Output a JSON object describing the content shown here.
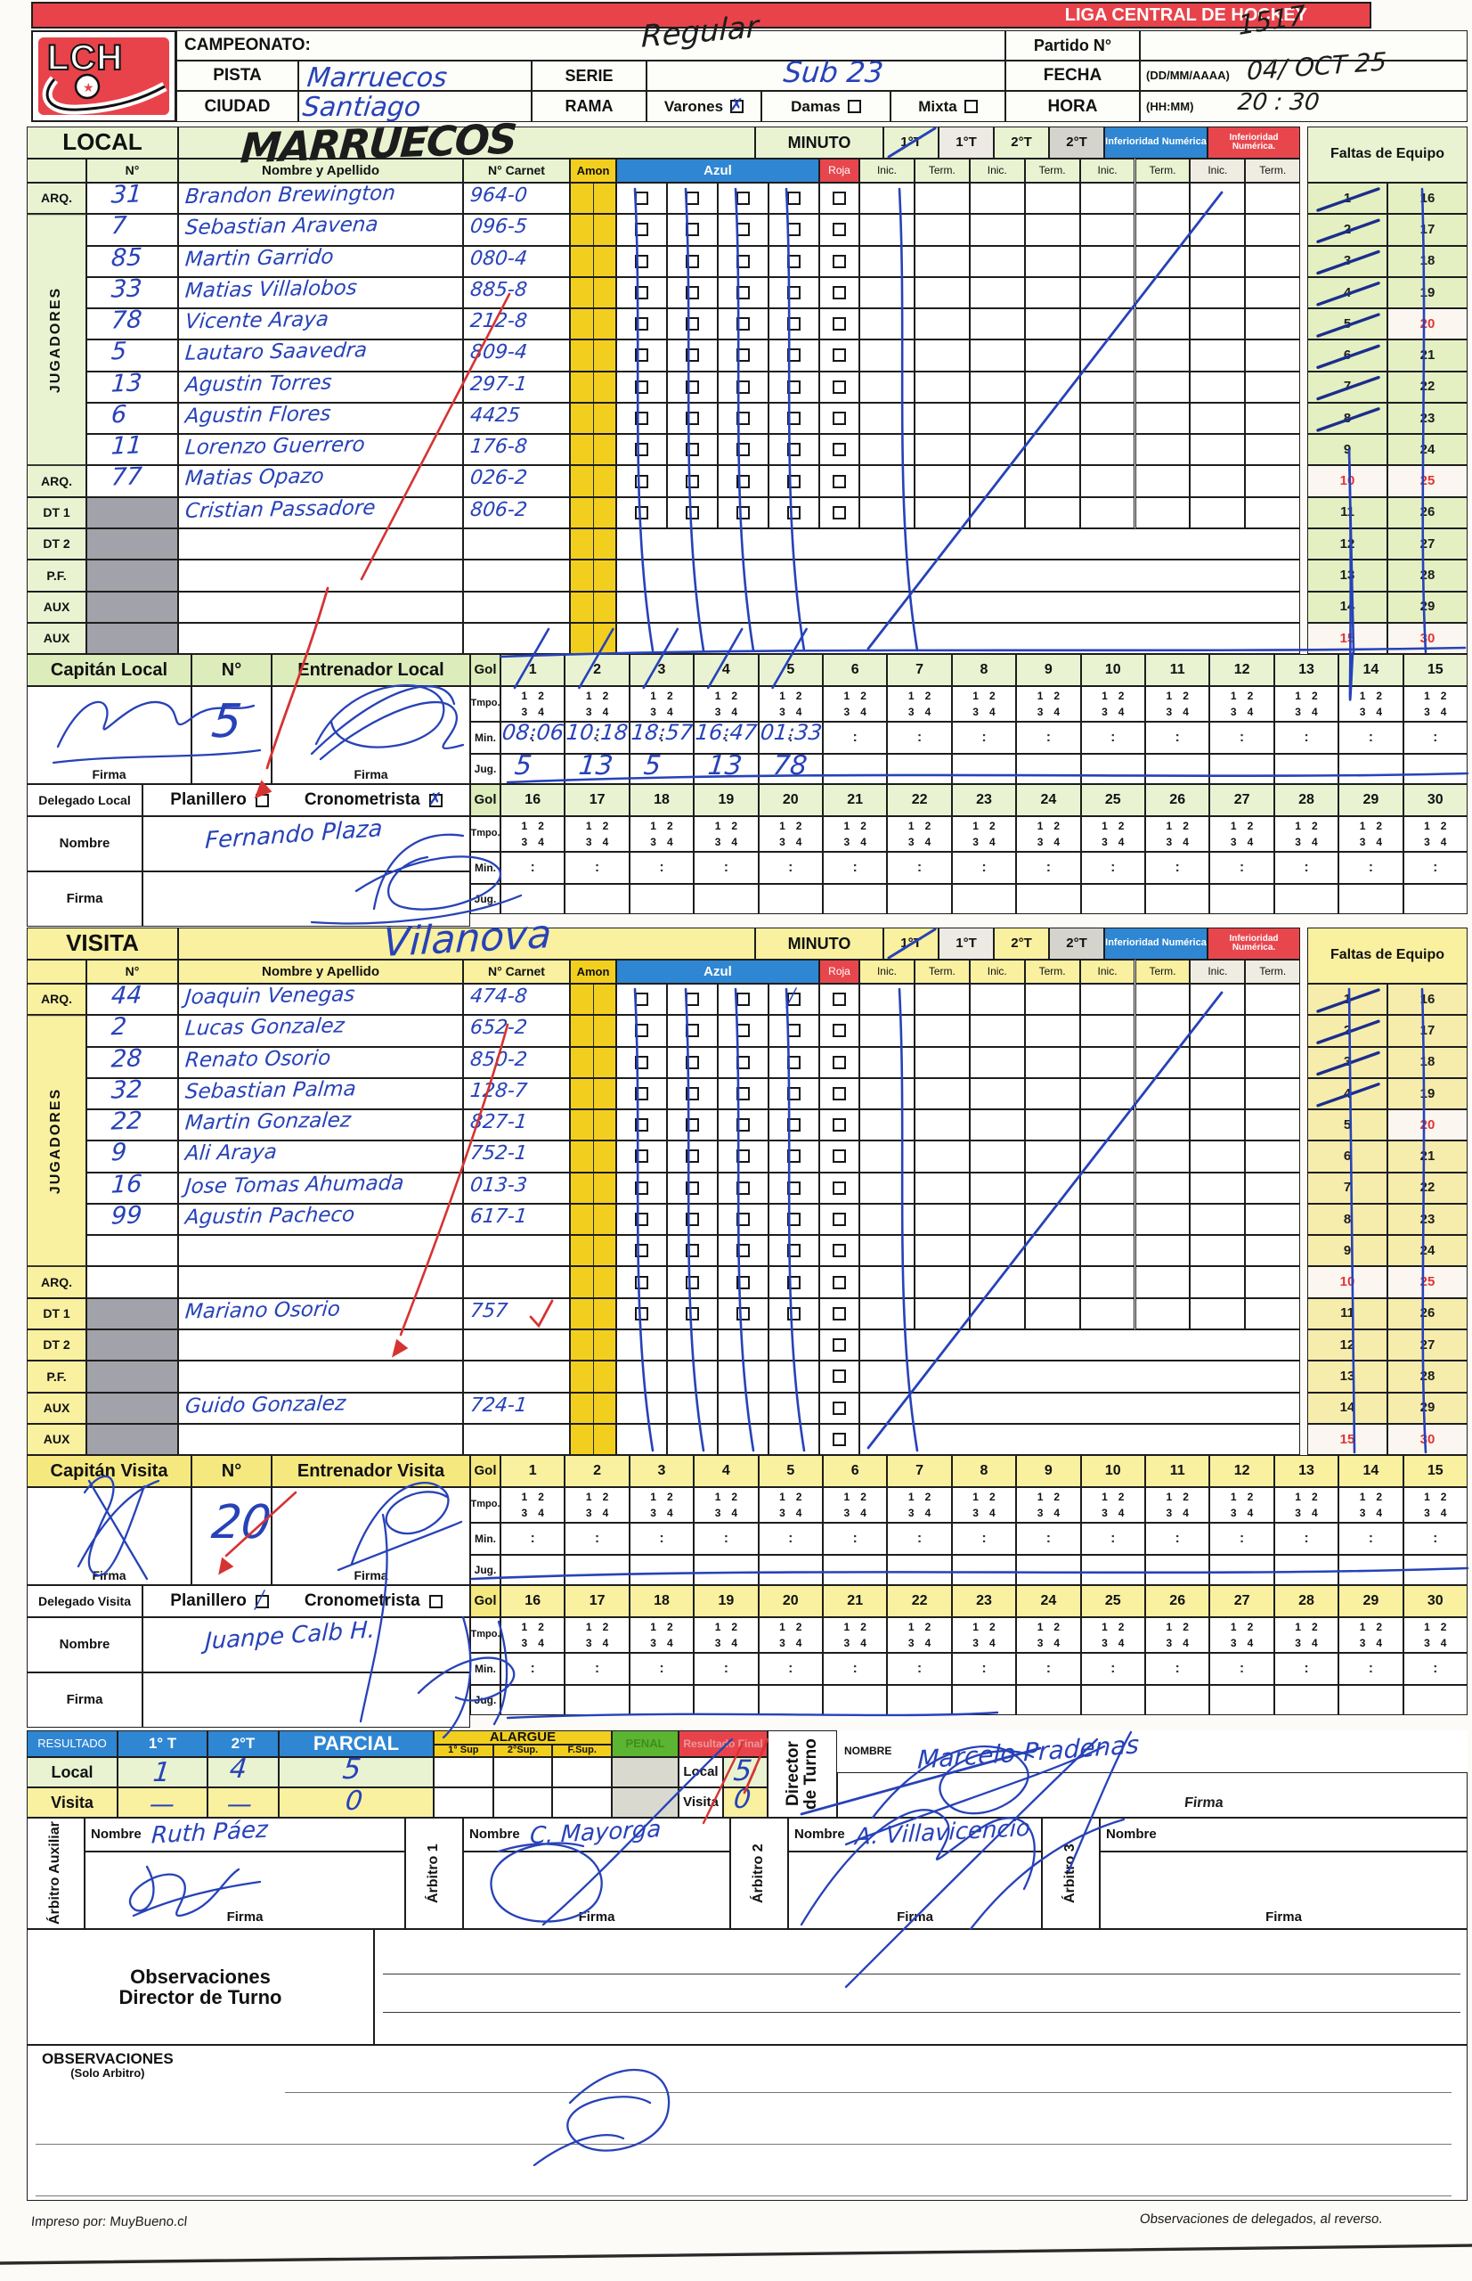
{
  "colors": {
    "header_red": "#e8434b",
    "blue": "#2f86d2",
    "amon_yellow": "#f2cf1f",
    "roja_red": "#e8464d",
    "penal_green": "#5cb531",
    "local_green": "#e9f3d2",
    "local_green_dark": "#dcecba",
    "visita_yellow": "#f9f0a0",
    "visita_yellow_dark": "#f5e87e",
    "gray_cell": "#a2a2aa",
    "period_gray": "#d4d4cc",
    "ink_blue": "#2742b8",
    "ink_red": "#d63333",
    "ink_black": "#1c1c1c"
  },
  "title_bar": {
    "title": "LIGA CENTRAL DE HOCKEY"
  },
  "logo": {
    "text": "LCH"
  },
  "header": {
    "campeonato_label": "CAMPEONATO:",
    "campeonato_value": "Regular",
    "pista_label": "PISTA",
    "pista_value": "Marruecos",
    "ciudad_label": "CIUDAD",
    "ciudad_value": "Santiago",
    "serie_label": "SERIE",
    "serie_value": "Sub 23",
    "rama_label": "RAMA",
    "rama_options": [
      {
        "label": "Varones",
        "checked": true
      },
      {
        "label": "Damas",
        "checked": false
      },
      {
        "label": "Mixta",
        "checked": false
      }
    ],
    "partido_label": "Partido N°",
    "partido_value": "1517",
    "fecha_label": "FECHA",
    "fecha_format": "(DD/MM/AAAA)",
    "fecha_value": "04/ OCT 25",
    "hora_label": "HORA",
    "hora_format": "(HH:MM)",
    "hora_value": "20 : 30"
  },
  "shared": {
    "minuto_label": "MINUTO",
    "periods": [
      "1°T",
      "1°T",
      "2°T",
      "2°T"
    ],
    "inferioridad_label": "Inferioridad Numérica",
    "inferioridad_label2": "Inferioridad Numérica.",
    "faltas_label": "Faltas de Equipo",
    "col_headers": {
      "num": "N°",
      "nombre": "Nombre y Apellido",
      "carnet": "N° Carnet",
      "amon": "Amon",
      "azul": "Azul",
      "roja": "Roja",
      "inic": "Inic.",
      "term": "Term."
    },
    "jugadores_label": "JUGADORES",
    "firma_label": "Firma",
    "nombre_label": "Nombre",
    "planillero_label": "Planillero",
    "cronometrista_label": "Cronometrista",
    "gol_label": "Gol",
    "tmpo_label": "Tmpo.",
    "min_label": "Min.",
    "jug_label": "Jug.",
    "tmpo_digits": [
      "1",
      "2",
      "3",
      "4"
    ],
    "faltas_col1": [
      1,
      2,
      3,
      4,
      5,
      6,
      7,
      8,
      9,
      10,
      11,
      12,
      13,
      14,
      15
    ],
    "faltas_col2": [
      16,
      17,
      18,
      19,
      20,
      21,
      22,
      23,
      24,
      25,
      26,
      27,
      28,
      29,
      30
    ],
    "faltas_red_numbers": [
      10,
      15,
      20,
      25,
      30
    ],
    "gol_numbers_1": [
      1,
      2,
      3,
      4,
      5,
      6,
      7,
      8,
      9,
      10,
      11,
      12,
      13,
      14,
      15
    ],
    "gol_numbers_2": [
      16,
      17,
      18,
      19,
      20,
      21,
      22,
      23,
      24,
      25,
      26,
      27,
      28,
      29,
      30
    ]
  },
  "local": {
    "side_label": "LOCAL",
    "team_name": "MARRUECOS",
    "roster": [
      {
        "role": "ARQ.",
        "num": "31",
        "name": "Brandon Brewington",
        "carnet": "964-0"
      },
      {
        "role": "",
        "num": "7",
        "name": "Sebastian Aravena",
        "carnet": "096-5"
      },
      {
        "role": "",
        "num": "85",
        "name": "Martin Garrido",
        "carnet": "080-4"
      },
      {
        "role": "",
        "num": "33",
        "name": "Matias Villalobos",
        "carnet": "885-8"
      },
      {
        "role": "",
        "num": "78",
        "name": "Vicente Araya",
        "carnet": "212-8"
      },
      {
        "role": "",
        "num": "5",
        "name": "Lautaro Saavedra",
        "carnet": "809-4"
      },
      {
        "role": "",
        "num": "13",
        "name": "Agustin Torres",
        "carnet": "297-1"
      },
      {
        "role": "",
        "num": "6",
        "name": "Agustin Flores",
        "carnet": "4425"
      },
      {
        "role": "",
        "num": "11",
        "name": "Lorenzo Guerrero",
        "carnet": "176-8"
      },
      {
        "role": "ARQ.",
        "num": "77",
        "name": "Matias Opazo",
        "carnet": "026-2"
      },
      {
        "role": "DT 1",
        "num": "",
        "name": "Cristian Passadore",
        "carnet": "806-2"
      },
      {
        "role": "DT 2",
        "num": "",
        "name": "",
        "carnet": ""
      },
      {
        "role": "P.F.",
        "num": "",
        "name": "",
        "carnet": ""
      },
      {
        "role": "AUX",
        "num": "",
        "name": "",
        "carnet": ""
      },
      {
        "role": "AUX",
        "num": "",
        "name": "",
        "carnet": ""
      }
    ],
    "capitan_label": "Capitán Local",
    "numero_label": "N°",
    "capitan_numero": "5",
    "entrenador_label": "Entrenador Local",
    "delegado_label": "Delegado Local",
    "planillero_checked": false,
    "cronometrista_checked": true,
    "delegado_nombre": "Fernando  Plaza",
    "faltas_marked": 8,
    "goles": [
      {
        "gol": 1,
        "min": "08:06",
        "jug": "5"
      },
      {
        "gol": 2,
        "min": "10:18",
        "jug": "13"
      },
      {
        "gol": 3,
        "min": "18:57",
        "jug": "5"
      },
      {
        "gol": 4,
        "min": "16:47",
        "jug": "13"
      },
      {
        "gol": 5,
        "min": "01:33",
        "jug": "78"
      }
    ]
  },
  "visita": {
    "side_label": "VISITA",
    "team_name": "Vilanova",
    "roster": [
      {
        "role": "ARQ.",
        "num": "44",
        "name": "Joaquin Venegas",
        "carnet": "474-8"
      },
      {
        "role": "",
        "num": "2",
        "name": "Lucas Gonzalez",
        "carnet": "652-2"
      },
      {
        "role": "",
        "num": "28",
        "name": "Renato Osorio",
        "carnet": "850-2"
      },
      {
        "role": "",
        "num": "32",
        "name": "Sebastian Palma",
        "carnet": "128-7"
      },
      {
        "role": "",
        "num": "22",
        "name": "Martin Gonzalez",
        "carnet": "827-1"
      },
      {
        "role": "",
        "num": "9",
        "name": "Ali Araya",
        "carnet": "752-1"
      },
      {
        "role": "",
        "num": "16",
        "name": "Jose Tomas Ahumada",
        "carnet": "013-3"
      },
      {
        "role": "",
        "num": "99",
        "name": "Agustin Pacheco",
        "carnet": "617-1"
      },
      {
        "role": "",
        "num": "",
        "name": "",
        "carnet": ""
      },
      {
        "role": "ARQ.",
        "num": "",
        "name": "",
        "carnet": ""
      },
      {
        "role": "DT 1",
        "num": "",
        "name": "Mariano Osorio",
        "carnet": "757"
      },
      {
        "role": "DT 2",
        "num": "",
        "name": "",
        "carnet": ""
      },
      {
        "role": "P.F.",
        "num": "",
        "name": "",
        "carnet": ""
      },
      {
        "role": "AUX",
        "num": "",
        "name": "Guido Gonzalez",
        "carnet": "724-1"
      },
      {
        "role": "AUX",
        "num": "",
        "name": "",
        "carnet": ""
      }
    ],
    "capitan_label": "Capitán Visita",
    "numero_label": "N°",
    "capitan_numero": "20",
    "entrenador_label": "Entrenador Visita",
    "delegado_label": "Delegado Visita",
    "planillero_checked": true,
    "cronometrista_checked": false,
    "delegado_nombre": "Juanpe Calb H.",
    "faltas_marked": 4,
    "goles": []
  },
  "resultado": {
    "resultado_label": "RESULTADO",
    "t1_label": "1° T",
    "t2_label": "2°T",
    "parcial_label": "PARCIAL",
    "alargue_label": "ALARGUE",
    "alargue_cols": [
      "1° Sup",
      "2°Sup.",
      "F.Sup."
    ],
    "penal_label": "PENAL",
    "final_label": "Resultado Final",
    "local_label": "Local",
    "visita_label": "Visita",
    "rows": {
      "local": {
        "t1": "1",
        "t2": "4",
        "parcial": "5",
        "final": "5"
      },
      "visita": {
        "t1": "—",
        "t2": "—",
        "parcial": "0",
        "final": "0"
      }
    },
    "director_label": "Director de Turno",
    "director_nombre_label": "NOMBRE",
    "director_nombre": "Marcelo Pradenas",
    "firma_label": "Firma"
  },
  "arbitros": {
    "nombre_label": "Nombre",
    "firma_label": "Firma",
    "list": [
      {
        "label": "Árbitro Auxiliar",
        "nombre": "Ruth Páez"
      },
      {
        "label": "Árbitro 1",
        "nombre": "C. Mayorga"
      },
      {
        "label": "Árbitro 2",
        "nombre": "A. Villavicencio"
      },
      {
        "label": "Árbitro 3",
        "nombre": ""
      }
    ]
  },
  "observaciones": {
    "director_label": "Observaciones\nDirector de Turno",
    "arbitro_label": "OBSERVACIONES",
    "arbitro_sublabel": "(Solo Arbitro)"
  },
  "footer": {
    "left": "Impreso por: MuyBueno.cl",
    "right": "Observaciones de delegados, al reverso."
  }
}
